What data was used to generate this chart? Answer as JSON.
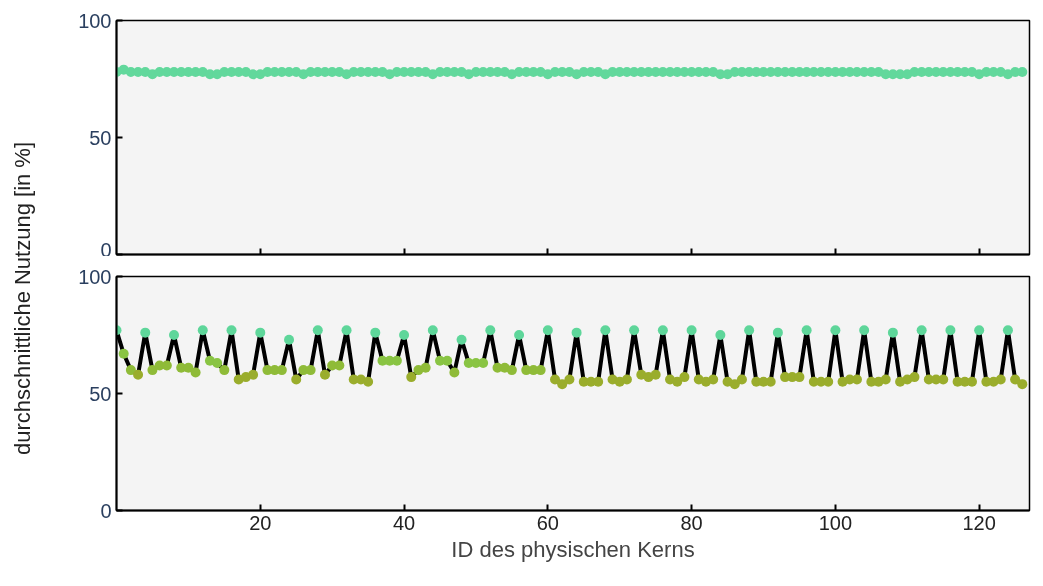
{
  "chart_data": [
    {
      "type": "scatter",
      "x": [
        0,
        1,
        2,
        3,
        4,
        5,
        6,
        7,
        8,
        9,
        10,
        11,
        12,
        13,
        14,
        15,
        16,
        17,
        18,
        19,
        20,
        21,
        22,
        23,
        24,
        25,
        26,
        27,
        28,
        29,
        30,
        31,
        32,
        33,
        34,
        35,
        36,
        37,
        38,
        39,
        40,
        41,
        42,
        43,
        44,
        45,
        46,
        47,
        48,
        49,
        50,
        51,
        52,
        53,
        54,
        55,
        56,
        57,
        58,
        59,
        60,
        61,
        62,
        63,
        64,
        65,
        66,
        67,
        68,
        69,
        70,
        71,
        72,
        73,
        74,
        75,
        76,
        77,
        78,
        79,
        80,
        81,
        82,
        83,
        84,
        85,
        86,
        87,
        88,
        89,
        90,
        91,
        92,
        93,
        94,
        95,
        96,
        97,
        98,
        99,
        100,
        101,
        102,
        103,
        104,
        105,
        106,
        107,
        108,
        109,
        110,
        111,
        112,
        113,
        114,
        115,
        116,
        117,
        118,
        119,
        120,
        121,
        122,
        123,
        124,
        125,
        126
      ],
      "xlim": [
        0,
        127
      ],
      "ylim": [
        0,
        100
      ],
      "xticks": [
        20,
        40,
        60,
        80,
        100,
        120
      ],
      "yticks": [
        0,
        50,
        100
      ],
      "tick_labels": "y",
      "marker": "circle",
      "series": [
        {
          "color": "#62d89c",
          "values": [
            78,
            79,
            78,
            78,
            78,
            77,
            78,
            78,
            78,
            78,
            78,
            78,
            78,
            77,
            77,
            78,
            78,
            78,
            78,
            77,
            77,
            78,
            78,
            78,
            78,
            78,
            77,
            78,
            78,
            78,
            78,
            78,
            77,
            78,
            78,
            78,
            78,
            78,
            77,
            78,
            78,
            78,
            78,
            78,
            77,
            78,
            78,
            78,
            78,
            77,
            78,
            78,
            78,
            78,
            78,
            77,
            78,
            78,
            78,
            78,
            77,
            78,
            78,
            78,
            77,
            78,
            78,
            78,
            77,
            78,
            78,
            78,
            78,
            78,
            78,
            78,
            78,
            78,
            78,
            78,
            78,
            78,
            78,
            78,
            77,
            77,
            78,
            78,
            78,
            78,
            78,
            78,
            78,
            78,
            78,
            78,
            78,
            78,
            78,
            78,
            78,
            78,
            78,
            78,
            78,
            78,
            78,
            77,
            77,
            77,
            77,
            78,
            78,
            78,
            78,
            78,
            78,
            78,
            78,
            78,
            77,
            78,
            78,
            78,
            77,
            78,
            78
          ]
        }
      ]
    },
    {
      "type": "line",
      "x": [
        0,
        1,
        2,
        3,
        4,
        5,
        6,
        7,
        8,
        9,
        10,
        11,
        12,
        13,
        14,
        15,
        16,
        17,
        18,
        19,
        20,
        21,
        22,
        23,
        24,
        25,
        26,
        27,
        28,
        29,
        30,
        31,
        32,
        33,
        34,
        35,
        36,
        37,
        38,
        39,
        40,
        41,
        42,
        43,
        44,
        45,
        46,
        47,
        48,
        49,
        50,
        51,
        52,
        53,
        54,
        55,
        56,
        57,
        58,
        59,
        60,
        61,
        62,
        63,
        64,
        65,
        66,
        67,
        68,
        69,
        70,
        71,
        72,
        73,
        74,
        75,
        76,
        77,
        78,
        79,
        80,
        81,
        82,
        83,
        84,
        85,
        86,
        87,
        88,
        89,
        90,
        91,
        92,
        93,
        94,
        95,
        96,
        97,
        98,
        99,
        100,
        101,
        102,
        103,
        104,
        105,
        106,
        107,
        108,
        109,
        110,
        111,
        112,
        113,
        114,
        115,
        116,
        117,
        118,
        119,
        120,
        121,
        122,
        123,
        124,
        125,
        126
      ],
      "xlim": [
        0,
        127
      ],
      "ylim": [
        0,
        100
      ],
      "xticks": [
        20,
        40,
        60,
        80,
        100,
        120
      ],
      "yticks": [
        0,
        50,
        100
      ],
      "marker": "circle",
      "xlabel": "ID des physischen Kerns",
      "ylabel": "durchschnittliche Nutzung [in %]",
      "series": [
        {
          "color": "#000000",
          "values": [
            77,
            67,
            60,
            58,
            76,
            60,
            62,
            62,
            75,
            61,
            61,
            59,
            77,
            64,
            63,
            60,
            77,
            56,
            57,
            58,
            76,
            60,
            60,
            60,
            73,
            56,
            60,
            60,
            77,
            58,
            62,
            62,
            77,
            56,
            56,
            55,
            76,
            64,
            64,
            64,
            75,
            57,
            60,
            61,
            77,
            64,
            64,
            59,
            73,
            63,
            63,
            63,
            77,
            61,
            61,
            60,
            75,
            60,
            60,
            60,
            77,
            56,
            54,
            56,
            76,
            55,
            55,
            55,
            77,
            56,
            55,
            56,
            77,
            58,
            57,
            58,
            77,
            56,
            55,
            57,
            77,
            56,
            55,
            56,
            75,
            55,
            54,
            56,
            77,
            55,
            55,
            55,
            76,
            57,
            57,
            57,
            77,
            55,
            55,
            55,
            77,
            55,
            56,
            56,
            77,
            55,
            55,
            56,
            76,
            55,
            56,
            57,
            77,
            56,
            56,
            56,
            77,
            55,
            55,
            55,
            77,
            55,
            55,
            56,
            77,
            56,
            54
          ],
          "colors": [
            "#5ed69a",
            "#89c443",
            "#8fbb38",
            "#9aad2c",
            "#5ed69a",
            "#8fbb38",
            "#8fbb38",
            "#8fbb38",
            "#5ed69a",
            "#8fbb38",
            "#8fbb38",
            "#8fbb38",
            "#5ed69a",
            "#89c443",
            "#89c443",
            "#8fbb38",
            "#5ed69a",
            "#9aad2c",
            "#9aad2c",
            "#9aad2c",
            "#5ed69a",
            "#8fbb38",
            "#8fbb38",
            "#8fbb38",
            "#5ed69a",
            "#9aad2c",
            "#8fbb38",
            "#8fbb38",
            "#5ed69a",
            "#9aad2c",
            "#8fbb38",
            "#8fbb38",
            "#5ed69a",
            "#9aad2c",
            "#9aad2c",
            "#9aad2c",
            "#5ed69a",
            "#89c443",
            "#89c443",
            "#89c443",
            "#5ed69a",
            "#9aad2c",
            "#8fbb38",
            "#8fbb38",
            "#5ed69a",
            "#89c443",
            "#89c443",
            "#8fbb38",
            "#5ed69a",
            "#89c443",
            "#89c443",
            "#89c443",
            "#5ed69a",
            "#8fbb38",
            "#8fbb38",
            "#8fbb38",
            "#5ed69a",
            "#8fbb38",
            "#8fbb38",
            "#8fbb38",
            "#5ed69a",
            "#9aad2c",
            "#9aad2c",
            "#9aad2c",
            "#5ed69a",
            "#9aad2c",
            "#9aad2c",
            "#9aad2c",
            "#5ed69a",
            "#9aad2c",
            "#9aad2c",
            "#9aad2c",
            "#5ed69a",
            "#9aad2c",
            "#9aad2c",
            "#9aad2c",
            "#5ed69a",
            "#9aad2c",
            "#9aad2c",
            "#9aad2c",
            "#5ed69a",
            "#9aad2c",
            "#9aad2c",
            "#9aad2c",
            "#5ed69a",
            "#9aad2c",
            "#9aad2c",
            "#9aad2c",
            "#5ed69a",
            "#9aad2c",
            "#9aad2c",
            "#9aad2c",
            "#5ed69a",
            "#9aad2c",
            "#9aad2c",
            "#9aad2c",
            "#5ed69a",
            "#9aad2c",
            "#9aad2c",
            "#9aad2c",
            "#5ed69a",
            "#9aad2c",
            "#9aad2c",
            "#9aad2c",
            "#5ed69a",
            "#9aad2c",
            "#9aad2c",
            "#9aad2c",
            "#5ed69a",
            "#9aad2c",
            "#9aad2c",
            "#9aad2c",
            "#5ed69a",
            "#9aad2c",
            "#9aad2c",
            "#9aad2c",
            "#5ed69a",
            "#9aad2c",
            "#9aad2c",
            "#9aad2c",
            "#5ed69a",
            "#9aad2c",
            "#9aad2c",
            "#9aad2c",
            "#5ed69a",
            "#9aad2c",
            "#9aad2c"
          ]
        }
      ]
    }
  ]
}
